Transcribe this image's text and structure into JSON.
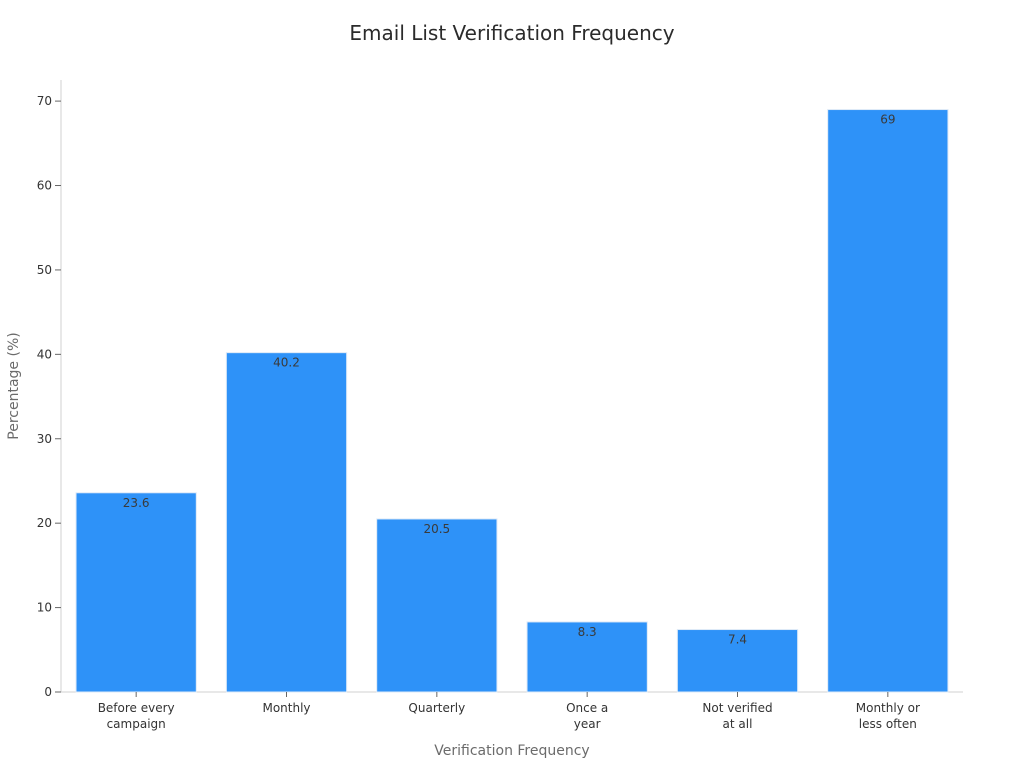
{
  "chart_data": {
    "type": "bar",
    "title": "Email List Verification Frequency",
    "xlabel": "Verification Frequency",
    "ylabel": "Percentage (%)",
    "categories": [
      [
        "Before every",
        "campaign"
      ],
      [
        "Monthly"
      ],
      [
        "Quarterly"
      ],
      [
        "Once a",
        "year"
      ],
      [
        "Not verified",
        "at all"
      ],
      [
        "Monthly or",
        "less often"
      ]
    ],
    "values": [
      23.6,
      40.2,
      20.5,
      8.3,
      7.4,
      69
    ],
    "value_labels": [
      "23.6",
      "40.2",
      "20.5",
      "8.3",
      "7.4",
      "69"
    ],
    "ylim": [
      0,
      72.5
    ],
    "yticks": [
      0,
      10,
      20,
      30,
      40,
      50,
      60,
      70
    ],
    "grid": false,
    "bar_color": "#2e92f8",
    "bar_edge_color": "#dde9f7"
  }
}
